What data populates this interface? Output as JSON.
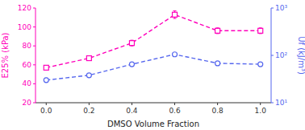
{
  "chart_data": {
    "type": "line",
    "x_label": "DMSO Volume Fraction",
    "y_label": "E25% (kPa)",
    "y2_label": "Uf (kJ/m³)",
    "x": [
      0.0,
      0.2,
      0.4,
      0.6,
      0.8,
      1.0
    ],
    "xlim": [
      -0.05,
      1.05
    ],
    "xticks": [
      {
        "value": 0.0,
        "label": "0.0"
      },
      {
        "value": 0.2,
        "label": "0.2"
      },
      {
        "value": 0.4,
        "label": "0.4"
      },
      {
        "value": 0.6,
        "label": "0.6"
      },
      {
        "value": 0.8,
        "label": "0.8"
      },
      {
        "value": 1.0,
        "label": "1.0"
      }
    ],
    "ylim": [
      20,
      120
    ],
    "yticks": [
      20,
      40,
      60,
      80,
      100,
      120
    ],
    "y2lim": [
      10,
      1000
    ],
    "y2ticks": [
      {
        "value": 10,
        "label": "10¹"
      },
      {
        "value": 100,
        "label": "10²"
      },
      {
        "value": 1000,
        "label": "10³"
      }
    ],
    "log": "y2",
    "series": [
      {
        "color": "#FF00BB",
        "marker": "square",
        "line_style": "dashed",
        "axis": "y",
        "values": [
          57,
          67,
          83,
          113,
          96,
          96
        ],
        "errors": [
          2,
          2,
          3,
          4,
          3,
          3
        ]
      },
      {
        "color": "#5566EE",
        "marker": "circle",
        "line_style": "dashed",
        "axis": "y2",
        "values": [
          30,
          38,
          65,
          105,
          68,
          65
        ],
        "errors": [
          3,
          3,
          5,
          6,
          5,
          5
        ]
      }
    ]
  }
}
